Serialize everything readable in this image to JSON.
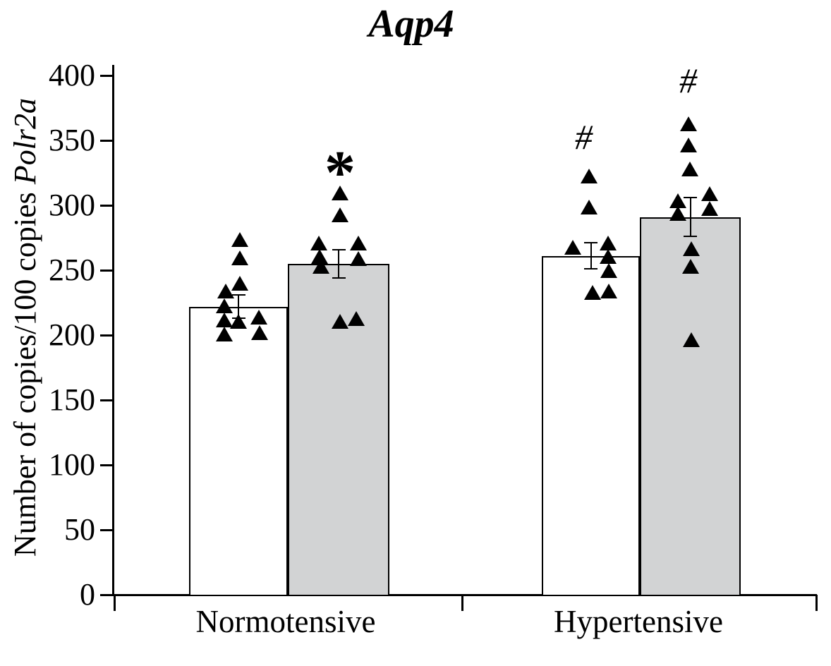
{
  "title": "Aqp4",
  "y_axis": {
    "label_regular": "Number of copies/100 copies ",
    "label_italic": "Polr2a"
  },
  "chart_data": {
    "type": "bar",
    "title": "Aqp4",
    "ylabel": "Number of copies/100 copies Polr2a",
    "ylim": [
      0,
      400
    ],
    "yticks": [
      0,
      50,
      100,
      150,
      200,
      250,
      300,
      350,
      400
    ],
    "grid": false,
    "legend": "none",
    "categories": [
      "Normotensive",
      "Hypertensive"
    ],
    "series_names": [
      "white",
      "gray"
    ],
    "colors": {
      "white_bar": "#ffffff",
      "gray_bar": "#d2d3d4",
      "foreground": "#000000"
    },
    "bars": [
      {
        "category": "Normotensive",
        "series": "white",
        "mean": 222,
        "sem": 9,
        "annotation": "",
        "annotation_value": 0,
        "annotation_dx": 0,
        "points": [
          {
            "value": 274,
            "dx": 2
          },
          {
            "value": 260,
            "dx": 2
          },
          {
            "value": 240,
            "dx": 2
          },
          {
            "value": 234,
            "dx": -18
          },
          {
            "value": 223,
            "dx": -20
          },
          {
            "value": 212,
            "dx": -20
          },
          {
            "value": 201,
            "dx": -20
          },
          {
            "value": 211,
            "dx": 0
          },
          {
            "value": 214,
            "dx": 29
          },
          {
            "value": 202,
            "dx": 30
          }
        ]
      },
      {
        "category": "Normotensive",
        "series": "gray",
        "mean": 255,
        "sem": 11,
        "annotation": "*",
        "annotation_value": 339,
        "annotation_dx": 2,
        "points": [
          {
            "value": 310,
            "dx": 2
          },
          {
            "value": 293,
            "dx": 2
          },
          {
            "value": 271,
            "dx": -28
          },
          {
            "value": 261,
            "dx": -27
          },
          {
            "value": 253,
            "dx": -25
          },
          {
            "value": 271,
            "dx": 28
          },
          {
            "value": 259,
            "dx": 28
          },
          {
            "value": 211,
            "dx": 2
          },
          {
            "value": 213,
            "dx": 25
          }
        ]
      },
      {
        "category": "Hypertensive",
        "series": "white",
        "mean": 261,
        "sem": 10,
        "annotation": "#",
        "annotation_value": 353,
        "annotation_dx": -10,
        "points": [
          {
            "value": 323,
            "dx": -3
          },
          {
            "value": 299,
            "dx": -3
          },
          {
            "value": 268,
            "dx": -26
          },
          {
            "value": 271,
            "dx": 24
          },
          {
            "value": 261,
            "dx": 24
          },
          {
            "value": 250,
            "dx": 25
          },
          {
            "value": 233,
            "dx": 2
          },
          {
            "value": 234,
            "dx": 25
          }
        ]
      },
      {
        "category": "Hypertensive",
        "series": "gray",
        "mean": 291,
        "sem": 15,
        "annotation": "#",
        "annotation_value": 397,
        "annotation_dx": -3,
        "points": [
          {
            "value": 363,
            "dx": -3
          },
          {
            "value": 347,
            "dx": -3
          },
          {
            "value": 328,
            "dx": -1
          },
          {
            "value": 304,
            "dx": -18
          },
          {
            "value": 294,
            "dx": -18
          },
          {
            "value": 309,
            "dx": 27
          },
          {
            "value": 298,
            "dx": 27
          },
          {
            "value": 267,
            "dx": 1
          },
          {
            "value": 253,
            "dx": 0
          },
          {
            "value": 197,
            "dx": 1
          }
        ]
      }
    ]
  }
}
